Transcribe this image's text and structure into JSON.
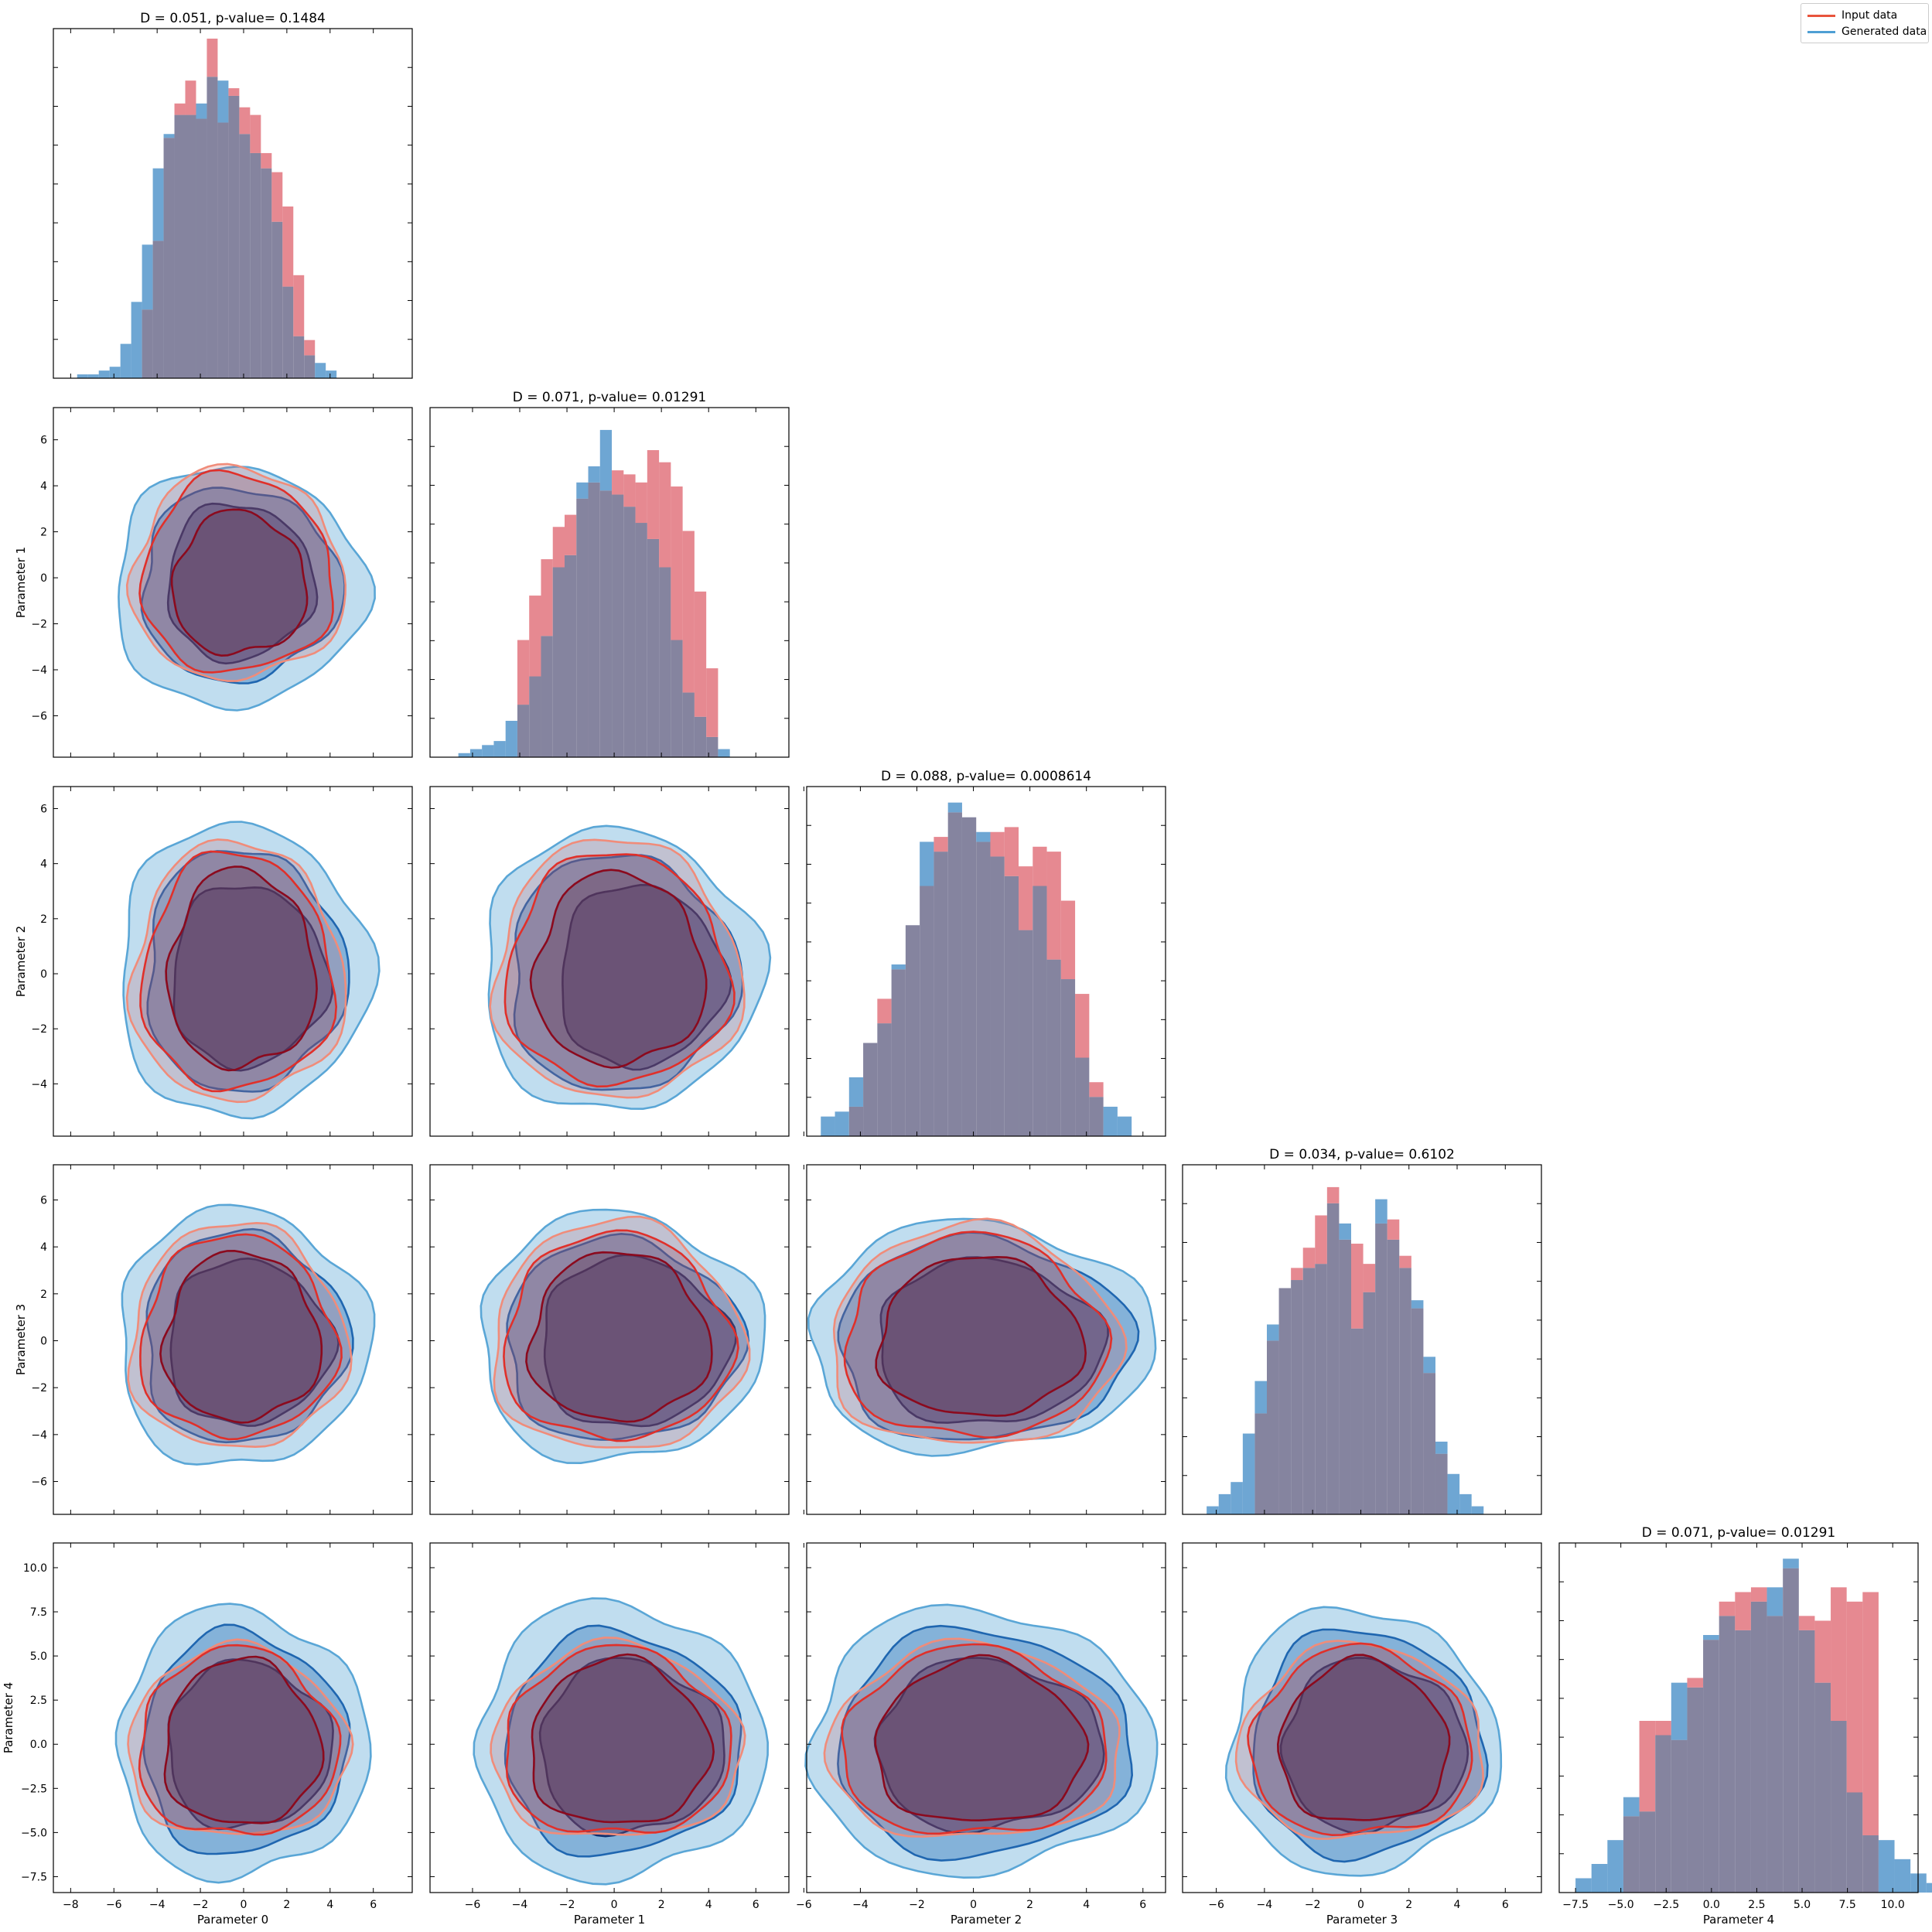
{
  "legend": {
    "placement": "top-right",
    "entries": [
      {
        "label": "Input data",
        "color": "#e8543c"
      },
      {
        "label": "Generated data",
        "color": "#4f9fd4"
      }
    ]
  },
  "colors": {
    "input_hist": "#e06c75",
    "generated_hist": "#4a90c8",
    "overlap_hist": "#85849f",
    "input_contours": [
      "#f08c7a",
      "#e0302a",
      "#8b0a1e"
    ],
    "generated_contours": [
      "#5aa6d6",
      "#1f66b0",
      "#0e2f6e"
    ]
  },
  "chart_data": {
    "type": "corner_plot",
    "parameters": [
      "Parameter 0",
      "Parameter 1",
      "Parameter 2",
      "Parameter 3",
      "Parameter 4"
    ],
    "axes": [
      {
        "range": [
          -8.8,
          7.8
        ],
        "ticks": [
          -8,
          -6,
          -4,
          -2,
          0,
          2,
          4,
          6
        ]
      },
      {
        "range": [
          -7.8,
          7.4
        ],
        "ticks": [
          -6,
          -4,
          -2,
          0,
          2,
          4,
          6
        ]
      },
      {
        "range": [
          -5.9,
          6.8
        ],
        "ticks": [
          -6,
          -4,
          -2,
          0,
          2,
          4,
          6
        ]
      },
      {
        "range": [
          -7.4,
          7.5
        ],
        "ticks": [
          -6,
          -4,
          -2,
          0,
          2,
          4,
          6
        ]
      },
      {
        "range": [
          -8.4,
          11.4
        ],
        "ticks": [
          -7.5,
          -5.0,
          -2.5,
          0.0,
          2.5,
          5.0,
          7.5,
          10.0
        ],
        "tick_labels": [
          "−7.5",
          "−5.0",
          "−2.5",
          "0.0",
          "2.5",
          "5.0",
          "7.5",
          "10.0"
        ]
      }
    ],
    "diagonal": [
      {
        "title": "D = 0.051, p-value= 0.1484",
        "bin_start": -8.2,
        "bin_width": 0.5,
        "input": [
          0,
          0,
          0,
          0,
          0,
          0,
          0,
          18,
          36,
          63,
          72,
          78,
          68,
          89,
          67,
          76,
          71,
          69,
          59,
          54,
          45,
          27,
          10,
          0,
          0,
          0,
          0,
          0,
          0,
          0,
          0,
          0,
          0
        ],
        "generated": [
          0,
          1,
          1,
          2,
          3,
          9,
          20,
          35,
          55,
          64,
          69,
          69,
          72,
          79,
          78,
          74,
          64,
          59,
          55,
          41,
          24,
          11,
          6,
          4,
          2,
          0,
          0,
          0,
          0,
          0,
          0,
          0,
          0
        ],
        "ymax": 90
      },
      {
        "title": "D = 0.071, p-value= 0.01291",
        "bin_start": -7.1,
        "bin_width": 0.5,
        "input": [
          0,
          0,
          0,
          0,
          0,
          0,
          29,
          40,
          49,
          57,
          60,
          64,
          68,
          66,
          71,
          70,
          68,
          76,
          73,
          67,
          56,
          41,
          22,
          0,
          0,
          0,
          0
        ],
        "generated": [
          0,
          1,
          2,
          3,
          4,
          9,
          13,
          20,
          30,
          47,
          50,
          68,
          72,
          81,
          65,
          62,
          58,
          54,
          47,
          29,
          16,
          10,
          5,
          2,
          0,
          0,
          0
        ],
        "ymax": 85
      },
      {
        "title": "D = 0.088, p-value= 0.0008614",
        "bin_start": -5.4,
        "bin_width": 0.5,
        "input": [
          0,
          0,
          6,
          19,
          28,
          34,
          43,
          51,
          61,
          66,
          65,
          60,
          62,
          63,
          55,
          59,
          58,
          48,
          29,
          11,
          0,
          0,
          0
        ],
        "generated": [
          4,
          5,
          12,
          19,
          23,
          35,
          43,
          60,
          58,
          68,
          65,
          62,
          57,
          53,
          42,
          51,
          36,
          32,
          16,
          8,
          6,
          4,
          0
        ],
        "ymax": 70
      },
      {
        "title": "D = 0.034, p-value= 0.6102",
        "bin_start": -6.9,
        "bin_width": 0.5,
        "input": [
          0,
          0,
          0,
          0,
          0,
          25,
          43,
          56,
          61,
          66,
          74,
          81,
          68,
          67,
          62,
          72,
          73,
          64,
          51,
          35,
          15,
          0,
          0,
          0,
          0
        ],
        "generated": [
          0,
          2,
          5,
          8,
          20,
          33,
          47,
          56,
          58,
          61,
          62,
          77,
          72,
          46,
          55,
          78,
          68,
          61,
          53,
          39,
          18,
          10,
          5,
          2,
          0
        ],
        "ymax": 85
      },
      {
        "title": "D = 0.071, p-value= 0.01291",
        "bin_start": -7.5,
        "bin_width": 0.88,
        "input": [
          0,
          0,
          0,
          16,
          36,
          36,
          32,
          45,
          53,
          61,
          63,
          64,
          58,
          68,
          58,
          57,
          64,
          61,
          63,
          0,
          0,
          0,
          0,
          0,
          0
        ],
        "generated": [
          3,
          6,
          11,
          20,
          17,
          33,
          44,
          43,
          54,
          58,
          55,
          61,
          64,
          70,
          55,
          44,
          36,
          21,
          12,
          11,
          7,
          4,
          2,
          1,
          0
        ],
        "ymax": 72
      }
    ],
    "pairs": [
      {
        "x": 0,
        "y": 1,
        "gen": [
          {
            "cx": -0.3,
            "cy": -0.4,
            "rx": 5.8,
            "ry": 5.2
          },
          {
            "cx": -0.2,
            "cy": -0.3,
            "rx": 4.6,
            "ry": 4.2
          },
          {
            "cx": -0.2,
            "cy": -0.2,
            "rx": 3.4,
            "ry": 3.4
          }
        ],
        "inp": [
          {
            "cx": -0.3,
            "cy": 0.1,
            "rx": 4.9,
            "ry": 4.6
          },
          {
            "cx": -0.3,
            "cy": 0.1,
            "rx": 4.4,
            "ry": 4.3
          },
          {
            "cx": -0.2,
            "cy": -0.3,
            "rx": 3.1,
            "ry": 3.1
          }
        ]
      },
      {
        "x": 0,
        "y": 2,
        "gen": [
          {
            "cx": -0.1,
            "cy": 0.1,
            "rx": 5.8,
            "ry": 5.3
          },
          {
            "cx": 0.0,
            "cy": 0.1,
            "rx": 4.6,
            "ry": 4.4
          },
          {
            "cx": 0.2,
            "cy": -0.1,
            "rx": 3.6,
            "ry": 3.3
          }
        ],
        "inp": [
          {
            "cx": -0.3,
            "cy": 0.0,
            "rx": 4.9,
            "ry": 4.7
          },
          {
            "cx": -0.3,
            "cy": 0.0,
            "rx": 4.4,
            "ry": 4.3
          },
          {
            "cx": -0.1,
            "cy": 0.1,
            "rx": 3.4,
            "ry": 3.6
          }
        ]
      },
      {
        "x": 1,
        "y": 2,
        "gen": [
          {
            "cx": 0.2,
            "cy": 0.1,
            "rx": 5.9,
            "ry": 5.1
          },
          {
            "cx": 0.3,
            "cy": 0.0,
            "rx": 4.8,
            "ry": 4.3
          },
          {
            "cx": 1.1,
            "cy": -0.1,
            "rx": 3.5,
            "ry": 3.3
          }
        ],
        "inp": [
          {
            "cx": 0.1,
            "cy": 0.1,
            "rx": 5.2,
            "ry": 4.7
          },
          {
            "cx": 0.1,
            "cy": 0.1,
            "rx": 4.7,
            "ry": 4.2
          },
          {
            "cx": 0.2,
            "cy": 0.1,
            "rx": 3.6,
            "ry": 3.5
          }
        ]
      },
      {
        "x": 0,
        "y": 3,
        "gen": [
          {
            "cx": -0.1,
            "cy": 0.1,
            "rx": 5.8,
            "ry": 5.5
          },
          {
            "cx": 0.0,
            "cy": 0.1,
            "rx": 4.7,
            "ry": 4.5
          },
          {
            "cx": 0.2,
            "cy": -0.1,
            "rx": 3.8,
            "ry": 3.5
          }
        ],
        "inp": [
          {
            "cx": -0.3,
            "cy": 0.1,
            "rx": 5.0,
            "ry": 4.8
          },
          {
            "cx": -0.3,
            "cy": 0.1,
            "rx": 4.5,
            "ry": 4.3
          },
          {
            "cx": -0.1,
            "cy": 0.1,
            "rx": 3.6,
            "ry": 3.6
          }
        ]
      },
      {
        "x": 1,
        "y": 3,
        "gen": [
          {
            "cx": 0.2,
            "cy": 0.1,
            "rx": 6.0,
            "ry": 5.3
          },
          {
            "cx": 0.3,
            "cy": 0.0,
            "rx": 5.0,
            "ry": 4.3
          },
          {
            "cx": 0.8,
            "cy": -0.1,
            "rx": 4.0,
            "ry": 3.6
          }
        ],
        "inp": [
          {
            "cx": 0.1,
            "cy": 0.1,
            "rx": 5.3,
            "ry": 4.9
          },
          {
            "cx": 0.1,
            "cy": 0.1,
            "rx": 4.8,
            "ry": 4.4
          },
          {
            "cx": 0.2,
            "cy": 0.1,
            "rx": 3.8,
            "ry": 3.6
          }
        ]
      },
      {
        "x": 2,
        "y": 3,
        "gen": [
          {
            "cx": 0.2,
            "cy": 0.1,
            "rx": 6.1,
            "ry": 4.9
          },
          {
            "cx": 0.3,
            "cy": 0.0,
            "rx": 5.2,
            "ry": 4.3
          },
          {
            "cx": 0.5,
            "cy": -0.1,
            "rx": 4.0,
            "ry": 3.5
          }
        ],
        "inp": [
          {
            "cx": 0.0,
            "cy": 0.1,
            "rx": 5.1,
            "ry": 4.7
          },
          {
            "cx": 0.0,
            "cy": 0.1,
            "rx": 4.6,
            "ry": 4.3
          },
          {
            "cx": 0.2,
            "cy": 0.1,
            "rx": 3.6,
            "ry": 3.4
          }
        ]
      },
      {
        "x": 0,
        "y": 4,
        "gen": [
          {
            "cx": -0.1,
            "cy": 0.0,
            "rx": 5.8,
            "ry": 7.6
          },
          {
            "cx": 0.0,
            "cy": 0.0,
            "rx": 4.7,
            "ry": 6.3
          },
          {
            "cx": 0.2,
            "cy": -0.1,
            "rx": 3.8,
            "ry": 4.7
          }
        ],
        "inp": [
          {
            "cx": -0.3,
            "cy": 0.0,
            "rx": 5.1,
            "ry": 5.4
          },
          {
            "cx": -0.3,
            "cy": 0.0,
            "rx": 4.6,
            "ry": 5.3
          },
          {
            "cx": -0.1,
            "cy": 0.0,
            "rx": 3.6,
            "ry": 4.7
          }
        ]
      },
      {
        "x": 1,
        "y": 4,
        "gen": [
          {
            "cx": 0.2,
            "cy": 0.1,
            "rx": 6.1,
            "ry": 7.8
          },
          {
            "cx": 0.3,
            "cy": 0.0,
            "rx": 5.0,
            "ry": 6.3
          },
          {
            "cx": 0.7,
            "cy": -0.2,
            "rx": 3.9,
            "ry": 4.9
          }
        ],
        "inp": [
          {
            "cx": 0.1,
            "cy": 0.0,
            "rx": 5.3,
            "ry": 5.5
          },
          {
            "cx": 0.1,
            "cy": 0.0,
            "rx": 4.8,
            "ry": 5.3
          },
          {
            "cx": 0.2,
            "cy": 0.0,
            "rx": 3.8,
            "ry": 4.7
          }
        ]
      },
      {
        "x": 2,
        "y": 4,
        "gen": [
          {
            "cx": 0.2,
            "cy": 0.1,
            "rx": 6.1,
            "ry": 7.5
          },
          {
            "cx": 0.3,
            "cy": 0.0,
            "rx": 5.2,
            "ry": 6.4
          },
          {
            "cx": 0.5,
            "cy": -0.1,
            "rx": 4.0,
            "ry": 4.8
          }
        ],
        "inp": [
          {
            "cx": 0.0,
            "cy": 0.0,
            "rx": 5.2,
            "ry": 5.5
          },
          {
            "cx": 0.0,
            "cy": 0.0,
            "rx": 4.7,
            "ry": 5.3
          },
          {
            "cx": 0.2,
            "cy": 0.0,
            "rx": 3.7,
            "ry": 4.6
          }
        ]
      },
      {
        "x": 3,
        "y": 4,
        "gen": [
          {
            "cx": 0.0,
            "cy": 0.1,
            "rx": 5.6,
            "ry": 7.5
          },
          {
            "cx": 0.2,
            "cy": 0.0,
            "rx": 4.8,
            "ry": 6.4
          },
          {
            "cx": 0.5,
            "cy": -0.1,
            "rx": 3.8,
            "ry": 4.8
          }
        ],
        "inp": [
          {
            "cx": 0.0,
            "cy": 0.0,
            "rx": 5.1,
            "ry": 5.5
          },
          {
            "cx": 0.0,
            "cy": 0.0,
            "rx": 4.6,
            "ry": 5.3
          },
          {
            "cx": 0.1,
            "cy": 0.0,
            "rx": 3.5,
            "ry": 4.6
          }
        ]
      }
    ]
  }
}
